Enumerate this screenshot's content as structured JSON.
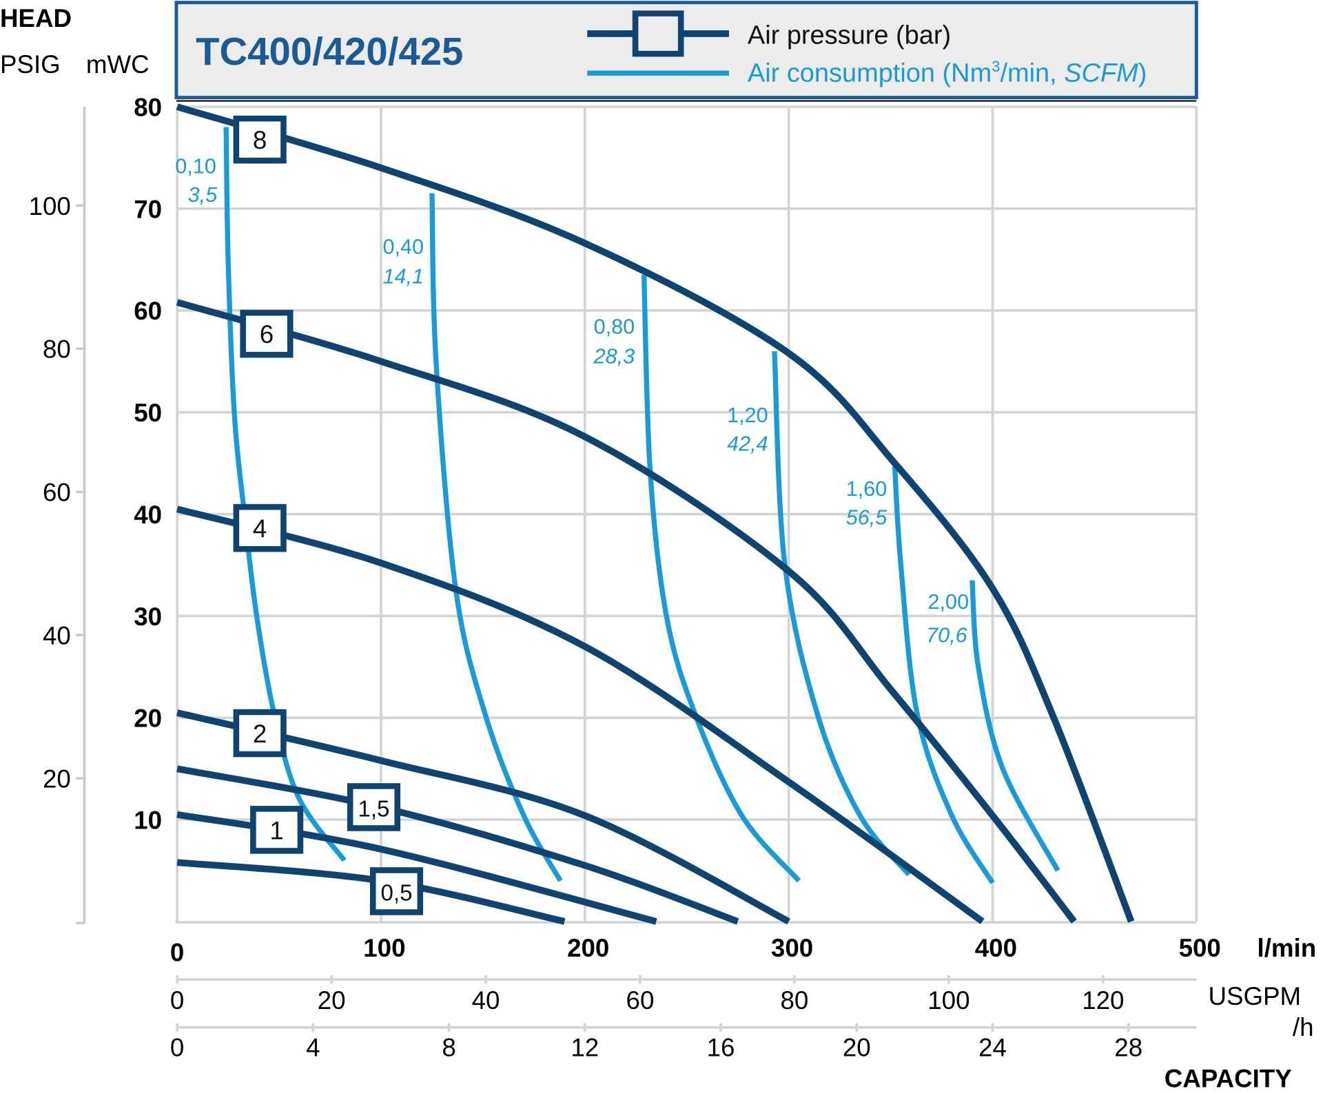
{
  "chart_data": {
    "type": "line",
    "title": "TC400/420/425",
    "legend": {
      "pressure": "Air pressure (bar)",
      "consumption_prefix": "Air consumption (Nm",
      "consumption_sup": "3",
      "consumption_mid": "/min, ",
      "consumption_italic": "SCFM",
      "consumption_end": ")",
      "placement": "top"
    },
    "ylabel": "HEAD",
    "y_units": [
      "PSIG",
      "mWC"
    ],
    "xlabel": "CAPACITY",
    "x_units": [
      "l/min",
      "USGPM",
      "/h"
    ],
    "xlim": [
      0,
      500
    ],
    "ylim": [
      0,
      80
    ],
    "grid": true,
    "x_ticks_lmin": [
      "0",
      "100",
      "200",
      "300",
      "400",
      "500"
    ],
    "x_ticks_usgpm": [
      "0",
      "20",
      "40",
      "60",
      "80",
      "100",
      "120"
    ],
    "x_ticks_m3h": [
      "0",
      "4",
      "8",
      "12",
      "16",
      "20",
      "24",
      "28"
    ],
    "y_ticks_mwc": [
      "10",
      "20",
      "30",
      "40",
      "50",
      "60",
      "70",
      "80"
    ],
    "y_ticks_psig": [
      "20",
      "40",
      "60",
      "80",
      "100"
    ],
    "pressure_series": [
      {
        "name": "8",
        "points": [
          [
            0,
            80
          ],
          [
            100,
            74
          ],
          [
            200,
            66.6
          ],
          [
            300,
            55.8
          ],
          [
            352,
            45
          ],
          [
            400,
            32.7
          ],
          [
            430,
            20
          ],
          [
            468,
            0
          ]
        ]
      },
      {
        "name": "6",
        "points": [
          [
            0,
            60.8
          ],
          [
            100,
            55
          ],
          [
            200,
            47.6
          ],
          [
            300,
            34.4
          ],
          [
            350,
            22.8
          ],
          [
            400,
            10.4
          ],
          [
            440,
            0
          ]
        ]
      },
      {
        "name": "4",
        "points": [
          [
            0,
            40.5
          ],
          [
            100,
            35.2
          ],
          [
            200,
            27
          ],
          [
            300,
            13.7
          ],
          [
            395,
            0
          ]
        ]
      },
      {
        "name": "2",
        "points": [
          [
            0,
            20.5
          ],
          [
            100,
            15.8
          ],
          [
            200,
            10.4
          ],
          [
            300,
            0
          ]
        ]
      },
      {
        "name": "1,5",
        "points": [
          [
            0,
            15
          ],
          [
            100,
            11.2
          ],
          [
            200,
            5.5
          ],
          [
            275,
            0
          ]
        ]
      },
      {
        "name": "1",
        "points": [
          [
            0,
            10.5
          ],
          [
            100,
            7.1
          ],
          [
            235,
            0
          ]
        ]
      },
      {
        "name": "0,5",
        "points": [
          [
            0,
            5.8
          ],
          [
            100,
            4
          ],
          [
            190,
            0
          ]
        ]
      }
    ],
    "consumption_series": [
      {
        "name": "0,10",
        "scfm": "3,5",
        "points": [
          [
            24,
            78
          ],
          [
            25,
            65
          ],
          [
            28,
            50
          ],
          [
            33,
            40
          ],
          [
            39,
            30
          ],
          [
            48,
            20
          ],
          [
            60,
            12
          ],
          [
            82,
            6
          ]
        ]
      },
      {
        "name": "0,40",
        "scfm": "14,1",
        "points": [
          [
            125,
            71.5
          ],
          [
            127,
            55
          ],
          [
            136.6,
            32.7
          ],
          [
            151,
            20.4
          ],
          [
            170,
            10.4
          ],
          [
            188,
            4
          ]
        ]
      },
      {
        "name": "0,80",
        "scfm": "28,3",
        "points": [
          [
            229,
            63.5
          ],
          [
            232,
            44.3
          ],
          [
            240,
            30
          ],
          [
            254,
            20.4
          ],
          [
            277,
            10.4
          ],
          [
            305,
            4
          ]
        ]
      },
      {
        "name": "1,20",
        "scfm": "42,4",
        "points": [
          [
            293,
            56
          ],
          [
            298,
            35.2
          ],
          [
            314,
            20.4
          ],
          [
            335,
            10.4
          ],
          [
            359,
            4.6
          ]
        ]
      },
      {
        "name": "1,60",
        "scfm": "56,5",
        "points": [
          [
            352,
            44.7
          ],
          [
            355,
            35
          ],
          [
            363,
            20.4
          ],
          [
            380,
            10.4
          ],
          [
            400,
            3.8
          ]
        ]
      },
      {
        "name": "2,00",
        "scfm": "70,6",
        "points": [
          [
            390,
            33.5
          ],
          [
            393,
            25
          ],
          [
            405,
            15
          ],
          [
            432,
            5
          ]
        ]
      }
    ],
    "colors": {
      "pressure": "#0f4470",
      "consumption": "#1a9bd7",
      "title": "#1a5a96",
      "grid": "#d4d4d4",
      "legend_bg": "#ececec"
    }
  }
}
